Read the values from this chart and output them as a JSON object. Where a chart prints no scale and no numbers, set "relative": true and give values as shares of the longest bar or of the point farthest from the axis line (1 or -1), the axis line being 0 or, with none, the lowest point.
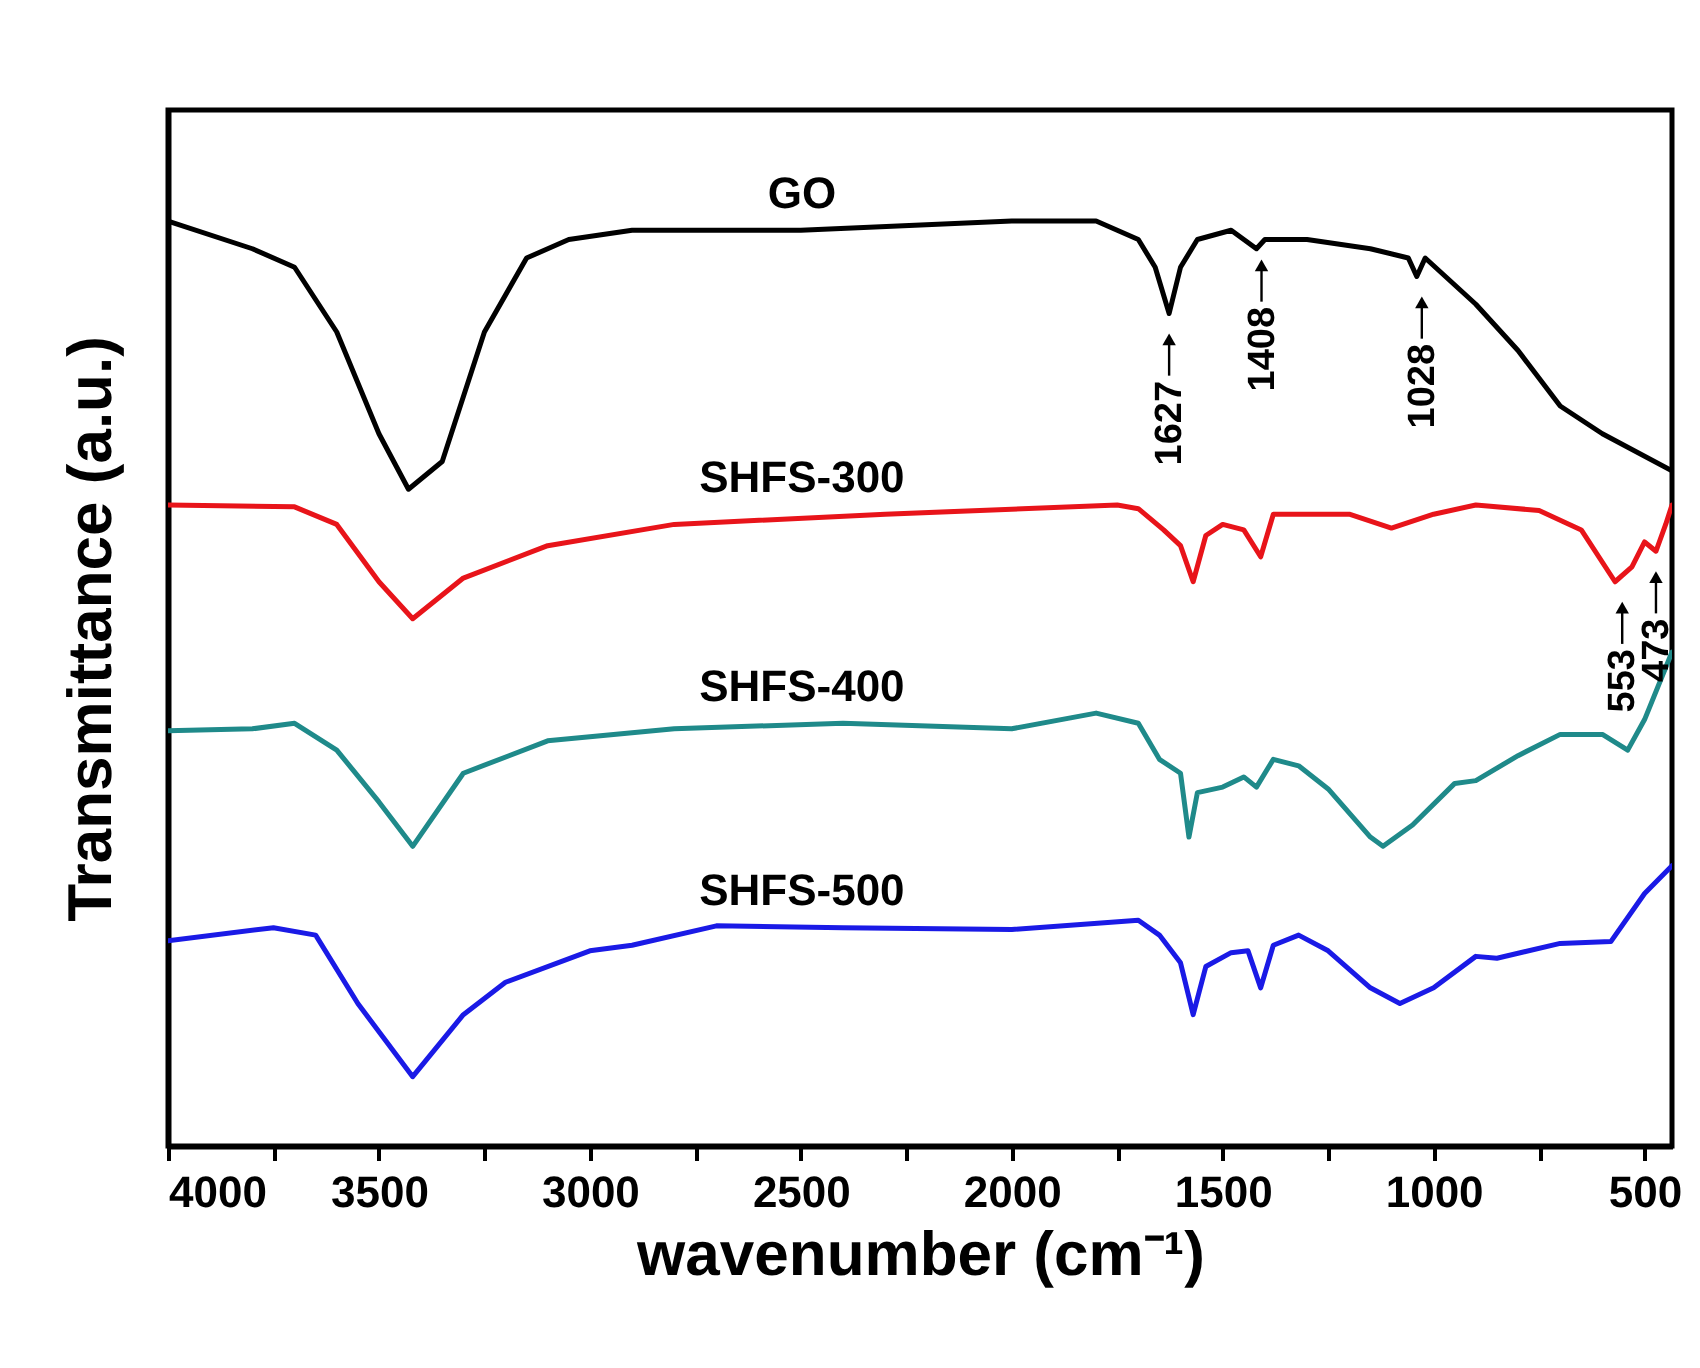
{
  "chart_data": {
    "type": "line",
    "relative": true,
    "xlabel": "wavenumber (cm⁻¹)",
    "ylabel": "Transmittance (a.u.)",
    "xlim": [
      4000,
      435
    ],
    "xticks": [
      4000,
      {
        "value": 3750,
        "label": null
      },
      3500,
      {
        "value": 3250,
        "label": null
      },
      3000,
      {
        "value": 2750,
        "label": null
      },
      2500,
      {
        "value": 2250,
        "label": null
      },
      2000,
      {
        "value": 1750,
        "label": null
      },
      1500,
      {
        "value": 1250,
        "label": null
      },
      1000,
      {
        "value": 750,
        "label": null
      },
      500
    ],
    "series": [
      {
        "name": "GO",
        "color": "#000000",
        "x": [
          4000,
          3800,
          3700,
          3600,
          3500,
          3430,
          3350,
          3250,
          3150,
          3050,
          2900,
          2500,
          2000,
          1800,
          1700,
          1660,
          1627,
          1600,
          1560,
          1480,
          1420,
          1400,
          1300,
          1150,
          1060,
          1040,
          1020,
          900,
          800,
          700,
          600,
          435
        ],
        "values": [
          1.0,
          0.97,
          0.95,
          0.88,
          0.77,
          0.71,
          0.74,
          0.88,
          0.96,
          0.98,
          0.99,
          0.99,
          1.0,
          1.0,
          0.98,
          0.95,
          0.9,
          0.95,
          0.98,
          0.99,
          0.97,
          0.98,
          0.98,
          0.97,
          0.96,
          0.94,
          0.96,
          0.91,
          0.86,
          0.8,
          0.77,
          0.73
        ]
      },
      {
        "name": "SHFS-300",
        "color": "#e8141a",
        "x": [
          4000,
          3700,
          3600,
          3500,
          3420,
          3300,
          3100,
          2800,
          2300,
          1750,
          1700,
          1640,
          1600,
          1570,
          1540,
          1500,
          1450,
          1410,
          1380,
          1200,
          1100,
          1000,
          900,
          750,
          650,
          570,
          530,
          500,
          473,
          450,
          435
        ],
        "values": [
          0.693,
          0.691,
          0.672,
          0.61,
          0.57,
          0.614,
          0.649,
          0.672,
          0.683,
          0.693,
          0.689,
          0.666,
          0.649,
          0.61,
          0.66,
          0.672,
          0.666,
          0.637,
          0.683,
          0.683,
          0.668,
          0.683,
          0.693,
          0.687,
          0.666,
          0.61,
          0.626,
          0.653,
          0.643,
          0.672,
          0.693
        ]
      },
      {
        "name": "SHFS-400",
        "color": "#1f8a8a",
        "x": [
          4000,
          3800,
          3700,
          3600,
          3500,
          3420,
          3300,
          3100,
          2800,
          2400,
          2000,
          1800,
          1700,
          1650,
          1600,
          1580,
          1560,
          1500,
          1450,
          1420,
          1380,
          1320,
          1250,
          1150,
          1120,
          1050,
          950,
          900,
          800,
          700,
          600,
          540,
          500,
          435
        ],
        "values": [
          0.449,
          0.451,
          0.457,
          0.428,
          0.372,
          0.324,
          0.403,
          0.438,
          0.451,
          0.457,
          0.451,
          0.468,
          0.457,
          0.418,
          0.403,
          0.334,
          0.382,
          0.388,
          0.399,
          0.388,
          0.418,
          0.411,
          0.386,
          0.334,
          0.324,
          0.347,
          0.392,
          0.395,
          0.422,
          0.445,
          0.445,
          0.428,
          0.461,
          0.534
        ]
      },
      {
        "name": "SHFS-500",
        "color": "#1a1ae6",
        "x": [
          4000,
          3750,
          3650,
          3550,
          3420,
          3300,
          3200,
          3000,
          2900,
          2700,
          2400,
          2000,
          1700,
          1650,
          1600,
          1570,
          1540,
          1480,
          1440,
          1410,
          1380,
          1320,
          1250,
          1150,
          1080,
          1000,
          900,
          850,
          700,
          580,
          500,
          435
        ],
        "values": [
          0.222,
          0.236,
          0.228,
          0.154,
          0.075,
          0.142,
          0.177,
          0.211,
          0.217,
          0.238,
          0.236,
          0.234,
          0.244,
          0.228,
          0.198,
          0.142,
          0.194,
          0.209,
          0.211,
          0.171,
          0.217,
          0.228,
          0.211,
          0.171,
          0.154,
          0.171,
          0.205,
          0.203,
          0.219,
          0.221,
          0.273,
          0.303
        ]
      }
    ],
    "annotations": [
      {
        "text": "1627",
        "x": 1627,
        "y": 0.9
      },
      {
        "text": "1408",
        "x": 1408,
        "y": 0.98
      },
      {
        "text": "1028",
        "x": 1028,
        "y": 0.94
      },
      {
        "text": "553",
        "x": 553,
        "y": 0.61
      },
      {
        "text": "473",
        "x": 473,
        "y": 0.643
      }
    ]
  }
}
